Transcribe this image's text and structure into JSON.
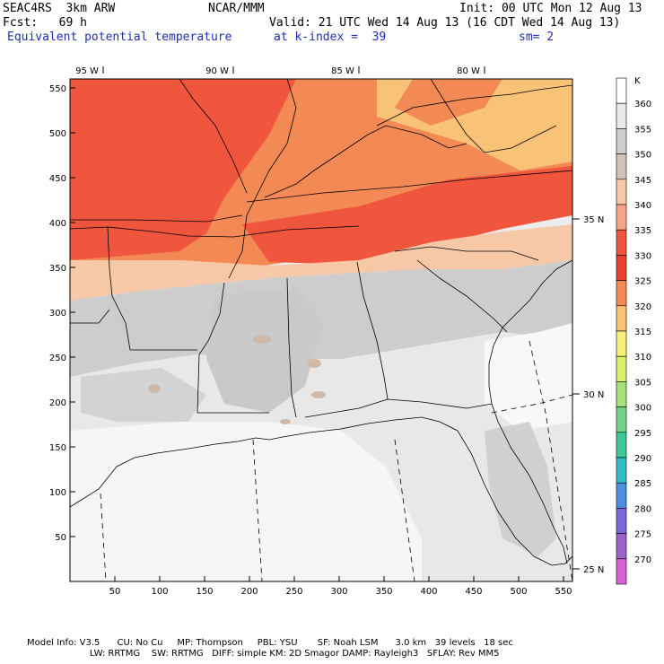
{
  "header": {
    "model": "SEAC4RS  3km ARW",
    "org": "NCAR/MMM",
    "init": "Init: 00 UTC Mon 12 Aug 13",
    "fcst": "Fcst:   69 h",
    "valid": "Valid: 21 UTC Wed 14 Aug 13 (16 CDT Wed 14 Aug 13)",
    "field": "Equivalent potential temperature",
    "level": "at k-index =  39",
    "smooth": "sm= 2"
  },
  "axes": {
    "x_ticks": [
      "50",
      "100",
      "150",
      "200",
      "250",
      "300",
      "350",
      "400",
      "450",
      "500",
      "550"
    ],
    "y_ticks": [
      "50",
      "100",
      "150",
      "200",
      "250",
      "300",
      "350",
      "400",
      "450",
      "500",
      "550"
    ],
    "lon_labels": [
      "95 W",
      "90 W",
      "85 W",
      "80 W"
    ],
    "lat_labels": [
      "35 N",
      "30 N",
      "25 N"
    ]
  },
  "colorbar": {
    "unit": "K",
    "levels": [
      "360",
      "355",
      "350",
      "345",
      "340",
      "335",
      "330",
      "325",
      "320",
      "315",
      "310",
      "305",
      "300",
      "295",
      "290",
      "285",
      "280",
      "275",
      "270"
    ],
    "colors": [
      "#ffffff",
      "#e8e8e8",
      "#cdcdcd",
      "#cfc3b6",
      "#f6c8a8",
      "#f6a58b",
      "#f0553e",
      "#e84032",
      "#f38a55",
      "#f8c277",
      "#f7ee78",
      "#d6f06a",
      "#a6e27a",
      "#73d38a",
      "#3fc79a",
      "#2fbfc5",
      "#4e8ee0",
      "#7a67d8",
      "#9b62c8",
      "#d861d0"
    ]
  },
  "footer": {
    "line1": "Model Info: V3.5      CU: No Cu     MP: Thompson     PBL: YSU       SF: Noah LSM      3.0 km   39 levels   18 sec",
    "line2": "                      LW: RRTMG    SW: RRTMG   DIFF: simple KM: 2D Smagor DAMP: Rayleigh3   SFLAY: Rev MM5"
  }
}
